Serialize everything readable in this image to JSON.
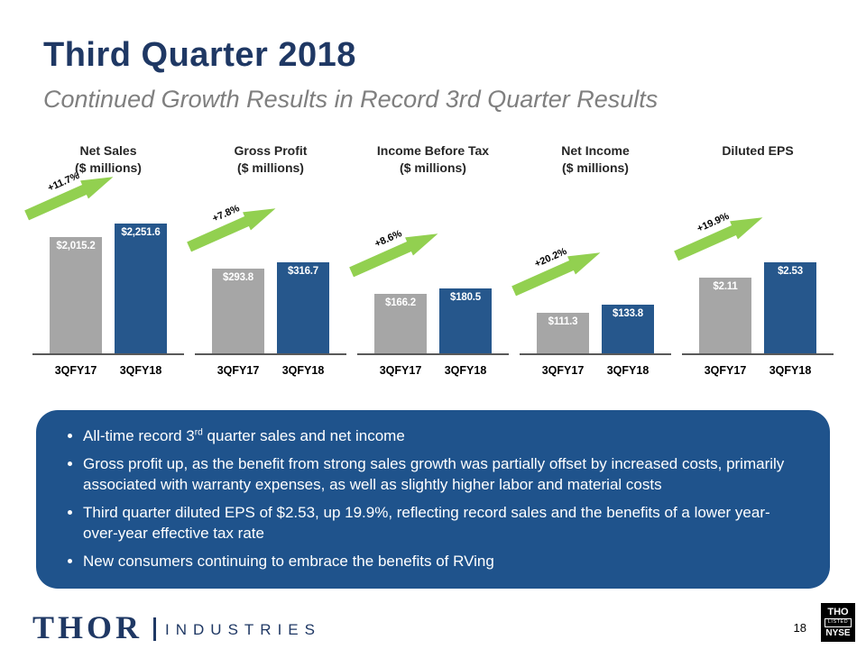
{
  "header": {
    "title": "Third Quarter 2018",
    "subtitle": "Continued Growth Results in Record 3rd Quarter Results"
  },
  "chart_data": [
    {
      "type": "bar",
      "title": "Net Sales",
      "subtitle": "($ millions)",
      "categories": [
        "3QFY17",
        "3QFY18"
      ],
      "values": [
        2015.2,
        2251.6
      ],
      "value_labels": [
        "$2,015.2",
        "$2,251.6"
      ],
      "growth_label": "+11.7%",
      "ylim": [
        0,
        2500
      ],
      "legend": "none",
      "grid": false
    },
    {
      "type": "bar",
      "title": "Gross Profit",
      "subtitle": "($ millions)",
      "categories": [
        "3QFY17",
        "3QFY18"
      ],
      "values": [
        293.8,
        316.7
      ],
      "value_labels": [
        "$293.8",
        "$316.7"
      ],
      "growth_label": "+7.8%",
      "ylim": [
        0,
        500
      ],
      "legend": "none",
      "grid": false
    },
    {
      "type": "bar",
      "title": "Income Before Tax",
      "subtitle": "($ millions)",
      "categories": [
        "3QFY17",
        "3QFY18"
      ],
      "values": [
        166.2,
        180.5
      ],
      "value_labels": [
        "$166.2",
        "$180.5"
      ],
      "growth_label": "+8.6%",
      "ylim": [
        0,
        400
      ],
      "legend": "none",
      "grid": false
    },
    {
      "type": "bar",
      "title": "Net Income",
      "subtitle": "($ millions)",
      "categories": [
        "3QFY17",
        "3QFY18"
      ],
      "values": [
        111.3,
        133.8
      ],
      "value_labels": [
        "$111.3",
        "$133.8"
      ],
      "growth_label": "+20.2%",
      "ylim": [
        0,
        400
      ],
      "legend": "none",
      "grid": false
    },
    {
      "type": "bar",
      "title": "Diluted EPS",
      "subtitle": "",
      "categories": [
        "3QFY17",
        "3QFY18"
      ],
      "values": [
        2.11,
        2.53
      ],
      "value_labels": [
        "$2.11",
        "$2.53"
      ],
      "growth_label": "+19.9%",
      "ylim": [
        0,
        4
      ],
      "legend": "none",
      "grid": false
    }
  ],
  "highlights": {
    "bullets": [
      {
        "segments": [
          {
            "text": "All-time record 3",
            "sup": false
          },
          {
            "text": "rd",
            "sup": true
          },
          {
            "text": " quarter sales and net income",
            "sup": false
          }
        ]
      },
      {
        "segments": [
          {
            "text": "Gross profit up, as the benefit from strong sales growth was partially offset by increased costs, primarily associated with warranty expenses, as well as slightly higher labor and material costs",
            "sup": false
          }
        ]
      },
      {
        "segments": [
          {
            "text": "Third quarter diluted EPS of $2.53, up 19.9%, reflecting record sales and the benefits of a lower year-over-year effective tax rate",
            "sup": false
          }
        ]
      },
      {
        "segments": [
          {
            "text": "New consumers continuing to embrace the benefits of RVing",
            "sup": false
          }
        ]
      }
    ]
  },
  "footer": {
    "logo_primary": "THOR",
    "logo_secondary": "INDUSTRIES",
    "page_number": "18",
    "nyse_badge": {
      "ticker": "THO",
      "listed": "LISTED",
      "exchange": "NYSE"
    }
  },
  "colors": {
    "title_navy": "#1F3864",
    "subtitle_gray": "#7F7F7F",
    "bar_prior_gray": "#A6A6A6",
    "bar_current_blue": "#26578C",
    "arrow_green": "#92D050",
    "callout_blue": "#1F538C",
    "badge_black": "#000000"
  }
}
